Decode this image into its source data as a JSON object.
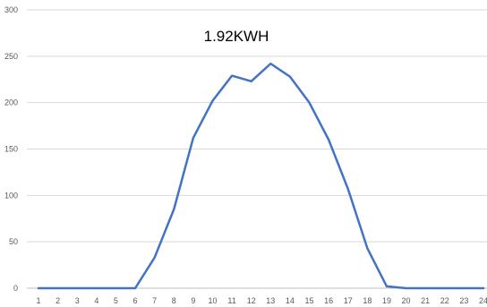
{
  "chart_data": {
    "type": "line",
    "title": "1.92KWH",
    "xlabel": "",
    "ylabel": "",
    "x": [
      "1",
      "2",
      "3",
      "4",
      "5",
      "6",
      "7",
      "8",
      "9",
      "10",
      "11",
      "12",
      "13",
      "14",
      "15",
      "16",
      "17",
      "18",
      "19",
      "20",
      "21",
      "22",
      "23",
      "24"
    ],
    "series": [
      {
        "values": [
          0,
          0,
          0,
          0,
          0,
          0,
          33,
          85,
          162,
          202,
          229,
          223,
          242,
          228,
          200,
          160,
          107,
          43,
          2,
          0,
          0,
          0,
          0,
          0
        ],
        "color": "#4472c4"
      }
    ],
    "ylim": [
      0,
      300
    ],
    "yticks": [
      "0",
      "50",
      "100",
      "150",
      "200",
      "250",
      "300"
    ],
    "grid": true,
    "legend": "none"
  }
}
